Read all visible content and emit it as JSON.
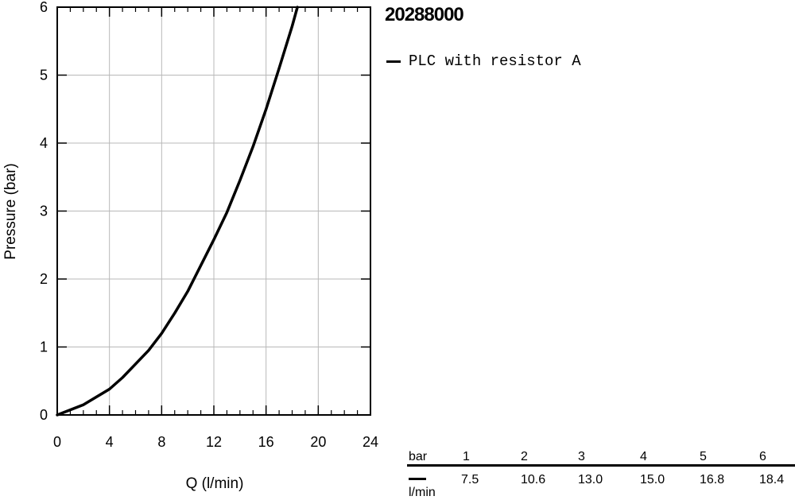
{
  "chart_data": {
    "type": "line",
    "title": "20288000",
    "xlabel": "Q (l/min)",
    "ylabel": "Pressure (bar)",
    "xlim": [
      0,
      24
    ],
    "ylim": [
      0,
      6
    ],
    "xticks": [
      0,
      4,
      8,
      12,
      16,
      20,
      24
    ],
    "yticks": [
      0,
      1,
      2,
      3,
      4,
      5,
      6
    ],
    "grid": true,
    "legend": "top-right",
    "series": [
      {
        "name": "PLC with resistor A",
        "color": "#000000",
        "x": [
          0,
          2,
          4,
          5,
          6,
          7,
          8,
          9,
          10,
          11,
          12,
          13,
          14,
          15,
          16,
          17,
          18,
          18.4
        ],
        "y": [
          0,
          0.15,
          0.38,
          0.55,
          0.75,
          0.95,
          1.2,
          1.5,
          1.82,
          2.2,
          2.58,
          2.98,
          3.45,
          3.95,
          4.5,
          5.1,
          5.72,
          6.0
        ]
      }
    ]
  },
  "table": {
    "row1_label": "bar",
    "row2_label": "l/min",
    "pressures": [
      "1",
      "2",
      "3",
      "4",
      "5",
      "6"
    ],
    "flows": [
      "7.5",
      "10.6",
      "13.0",
      "15.0",
      "16.8",
      "18.4"
    ]
  }
}
